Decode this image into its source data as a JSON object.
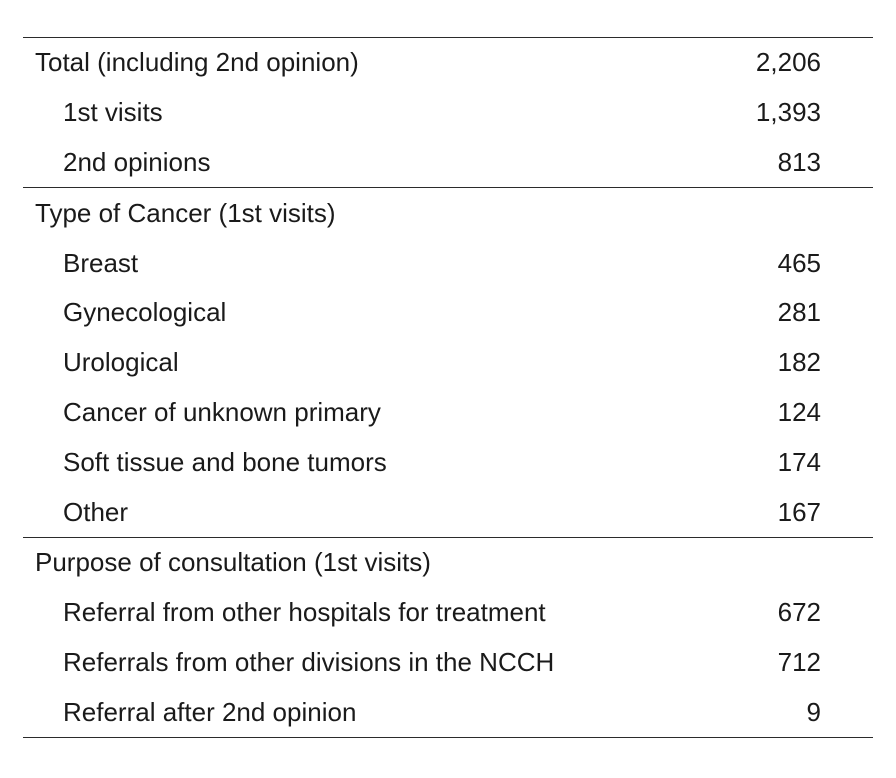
{
  "sections": [
    {
      "header": {
        "label": "Total (including 2nd opinion)",
        "value": "2,206"
      },
      "rows": [
        {
          "label": "1st visits",
          "value": "1,393"
        },
        {
          "label": "2nd opinions",
          "value": "813"
        }
      ]
    },
    {
      "header": {
        "label": "Type of Cancer (1st visits)",
        "value": ""
      },
      "rows": [
        {
          "label": "Breast",
          "value": "465"
        },
        {
          "label": "Gynecological",
          "value": "281"
        },
        {
          "label": "Urological",
          "value": "182"
        },
        {
          "label": "Cancer of unknown primary",
          "value": "124"
        },
        {
          "label": "Soft tissue and bone tumors",
          "value": "174"
        },
        {
          "label": "Other",
          "value": "167"
        }
      ]
    },
    {
      "header": {
        "label": "Purpose of consultation (1st visits)",
        "value": ""
      },
      "rows": [
        {
          "label": "Referral from other hospitals for treatment",
          "value": "672"
        },
        {
          "label": "Referrals from other divisions in the NCCH",
          "value": "712"
        },
        {
          "label": "Referral after 2nd opinion",
          "value": "9"
        }
      ]
    }
  ]
}
